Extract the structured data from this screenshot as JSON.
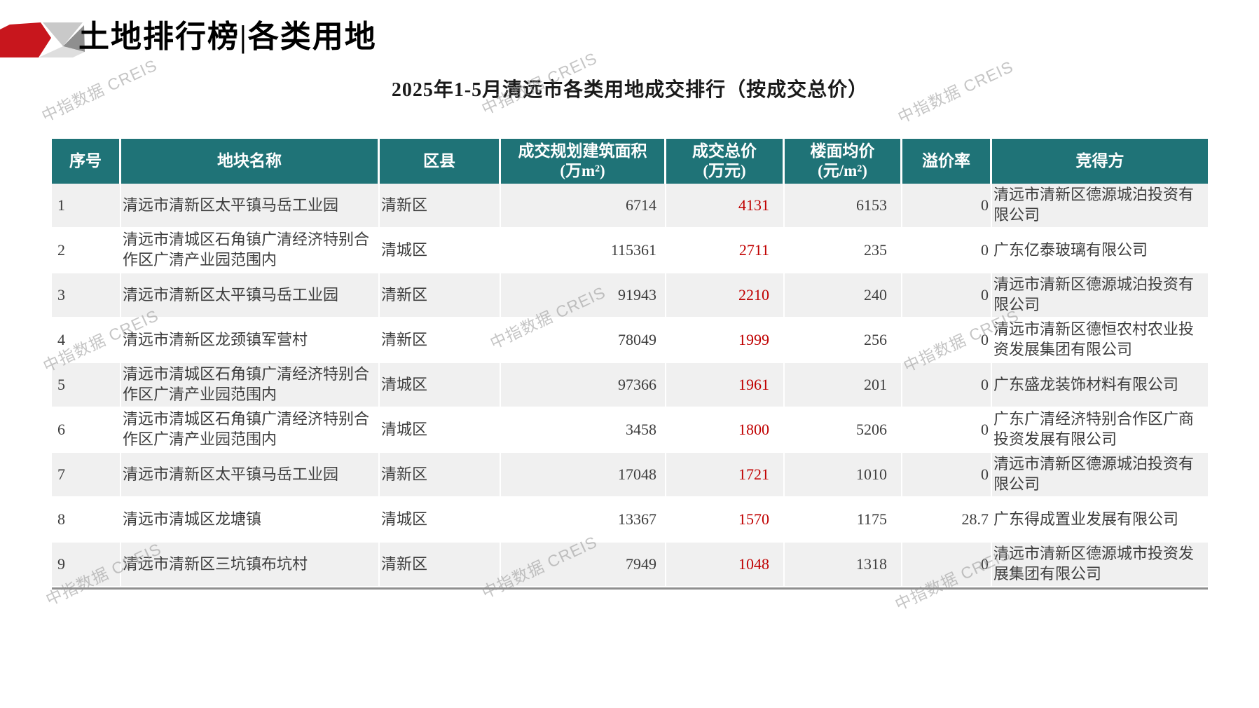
{
  "page": {
    "title": "土地排行榜|各类用地",
    "subtitle": "2025年1-5月清远市各类用地成交排行（按成交总价）",
    "watermark": "中指数据 CREIS"
  },
  "colors": {
    "header_bg": "#1F7377",
    "price_red": "#C00000",
    "row_alt_gray": "#F0F0F0",
    "logo_red": "#C8161D",
    "table_bottom_border": "#8F8F8F"
  },
  "table": {
    "columns": [
      {
        "key": "no",
        "label": "序号",
        "sub": ""
      },
      {
        "key": "name",
        "label": "地块名称",
        "sub": ""
      },
      {
        "key": "district",
        "label": "区县",
        "sub": ""
      },
      {
        "key": "area",
        "label": "成交规划建筑面积",
        "sub": "(万m²)"
      },
      {
        "key": "total_price",
        "label": "成交总价",
        "sub": "(万元)"
      },
      {
        "key": "floor_price",
        "label": "楼面均价",
        "sub": "(元/m²)"
      },
      {
        "key": "premium",
        "label": "溢价率",
        "sub": ""
      },
      {
        "key": "winner",
        "label": "竞得方",
        "sub": ""
      }
    ],
    "rows": [
      {
        "no": "1",
        "name": "清远市清新区太平镇马岳工业园",
        "district": "清新区",
        "area": "6714",
        "total_price": "4131",
        "floor_price": "6153",
        "premium": "0",
        "winner": "清远市清新区德源城泊投资有限公司"
      },
      {
        "no": "2",
        "name": "清远市清城区石角镇广清经济特别合作区广清产业园范围内",
        "district": "清城区",
        "area": "115361",
        "total_price": "2711",
        "floor_price": "235",
        "premium": "0",
        "winner": "广东亿泰玻璃有限公司"
      },
      {
        "no": "3",
        "name": "清远市清新区太平镇马岳工业园",
        "district": "清新区",
        "area": "91943",
        "total_price": "2210",
        "floor_price": "240",
        "premium": "0",
        "winner": "清远市清新区德源城泊投资有限公司"
      },
      {
        "no": "4",
        "name": "清远市清新区龙颈镇军营村",
        "district": "清新区",
        "area": "78049",
        "total_price": "1999",
        "floor_price": "256",
        "premium": "0",
        "winner": "清远市清新区德恒农村农业投资发展集团有限公司"
      },
      {
        "no": "5",
        "name": "清远市清城区石角镇广清经济特别合作区广清产业园范围内",
        "district": "清城区",
        "area": "97366",
        "total_price": "1961",
        "floor_price": "201",
        "premium": "0",
        "winner": "广东盛龙装饰材料有限公司"
      },
      {
        "no": "6",
        "name": "清远市清城区石角镇广清经济特别合作区广清产业园范围内",
        "district": "清城区",
        "area": "3458",
        "total_price": "1800",
        "floor_price": "5206",
        "premium": "0",
        "winner": "广东广清经济特别合作区广商投资发展有限公司"
      },
      {
        "no": "7",
        "name": "清远市清新区太平镇马岳工业园",
        "district": "清新区",
        "area": "17048",
        "total_price": "1721",
        "floor_price": "1010",
        "premium": "0",
        "winner": "清远市清新区德源城泊投资有限公司"
      },
      {
        "no": "8",
        "name": "清远市清城区龙塘镇",
        "district": "清城区",
        "area": "13367",
        "total_price": "1570",
        "floor_price": "1175",
        "premium": "28.7",
        "winner": "广东得成置业发展有限公司"
      },
      {
        "no": "9",
        "name": "清远市清新区三坑镇布坑村",
        "district": "清新区",
        "area": "7949",
        "total_price": "1048",
        "floor_price": "1318",
        "premium": "0",
        "winner": "清远市清新区德源城市投资发展集团有限公司"
      }
    ]
  }
}
